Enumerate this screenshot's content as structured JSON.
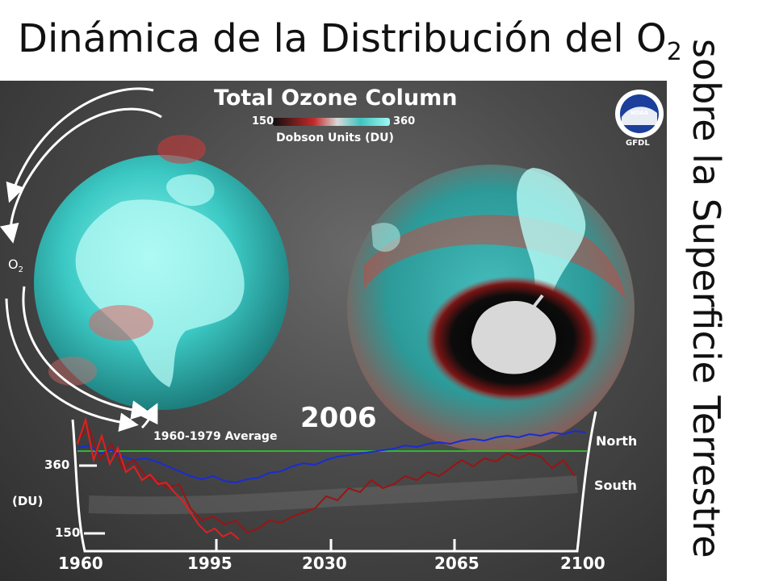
{
  "slide": {
    "title": "Dinámica de la Distribución del O",
    "title_sub": "2",
    "side_title": "sobre la Superficie Terrestre"
  },
  "figure": {
    "heading": "Total Ozone Column",
    "colorbar_min": "150",
    "colorbar_max": "360",
    "colorbar_units": "Dobson Units (DU)",
    "logo_text": "NOAA",
    "lab_text": "GFDL",
    "o2_label": "O",
    "o2_sub": "2",
    "year": "2006",
    "average_label": "1960-1979 Average",
    "north_label": "North",
    "south_label": "South",
    "y_label": "(DU)",
    "y_ticks": [
      "360",
      "150"
    ],
    "x_ticks": [
      "1960",
      "1995",
      "2030",
      "2065",
      "2100"
    ]
  },
  "colors": {
    "ozone_high": "#3fd6d0",
    "ozone_low": "#d2383a",
    "north_line": "#1a2bd6",
    "south_line": "#cc1414",
    "average_line": "#2fb82f"
  }
}
